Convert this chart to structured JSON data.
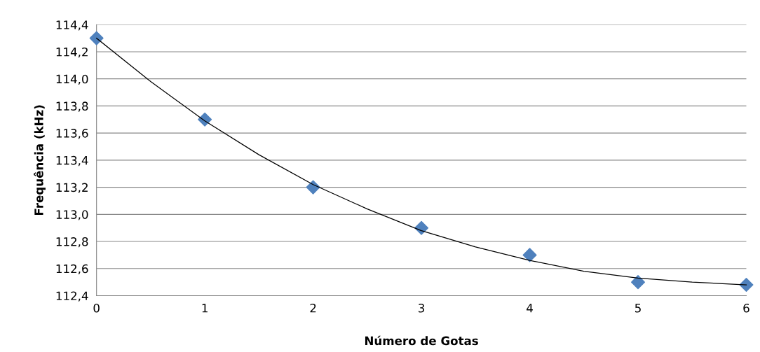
{
  "chart_data": {
    "type": "scatter",
    "xlabel": "Número de Gotas",
    "ylabel": "Frequência (kHz)",
    "x": [
      0,
      1,
      2,
      3,
      4,
      5,
      6
    ],
    "series": [
      {
        "color": "#4f81bd",
        "marker": "diamond",
        "values": [
          114.3,
          113.7,
          113.2,
          112.9,
          112.7,
          112.5,
          112.48
        ]
      },
      {
        "type": "line",
        "color": "#000000",
        "marker": "none",
        "line_style": "solid",
        "x": [
          0,
          0.5,
          1,
          1.5,
          2,
          2.5,
          3,
          3.5,
          4,
          4.5,
          5,
          5.5,
          6
        ],
        "values": [
          114.3,
          113.98,
          113.69,
          113.44,
          113.22,
          113.04,
          112.88,
          112.76,
          112.66,
          112.58,
          112.53,
          112.5,
          112.48
        ]
      }
    ],
    "xlim": [
      0,
      6
    ],
    "xticks": [
      0,
      1,
      2,
      3,
      4,
      5,
      6
    ],
    "ylim": [
      112.4,
      114.4
    ],
    "yticks": [
      {
        "value": 112.4,
        "label": "112,4"
      },
      {
        "value": 112.6,
        "label": "112,6"
      },
      {
        "value": 112.8,
        "label": "112,8"
      },
      {
        "value": 113.0,
        "label": "113,0"
      },
      {
        "value": 113.2,
        "label": "113,2"
      },
      {
        "value": 113.4,
        "label": "113,4"
      },
      {
        "value": 113.6,
        "label": "113,6"
      },
      {
        "value": 113.8,
        "label": "113,8"
      },
      {
        "value": 114.0,
        "label": "114,0"
      },
      {
        "value": 114.2,
        "label": "114,2"
      },
      {
        "value": 114.4,
        "label": "114,4"
      }
    ],
    "grid": "y",
    "legend": false
  }
}
